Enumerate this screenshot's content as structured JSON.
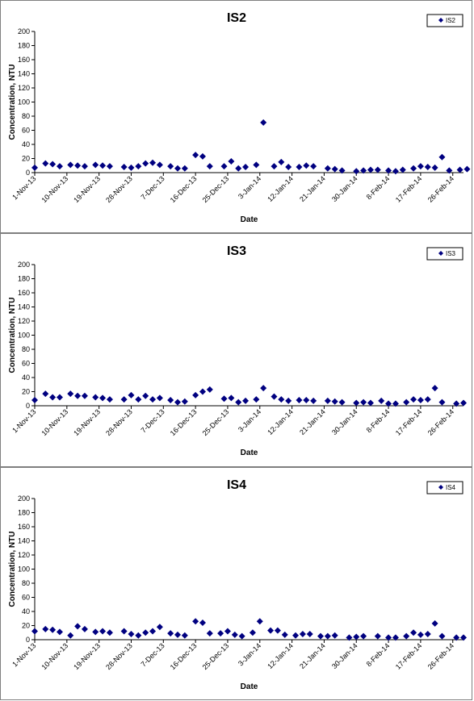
{
  "chart_data": [
    {
      "type": "scatter",
      "title": "IS2",
      "xlabel": "Date",
      "ylabel": "Concentration, NTU",
      "ylim": [
        0,
        200
      ],
      "yticks": [
        "0",
        "20",
        "40",
        "60",
        "80",
        "100",
        "120",
        "140",
        "160",
        "180",
        "200"
      ],
      "xlim": [
        "2013-11-01",
        "2014-03-01"
      ],
      "xticks": [
        "1-Nov-13",
        "10-Nov-13",
        "19-Nov-13",
        "28-Nov-13",
        "7-Dec-13",
        "16-Dec-13",
        "25-Dec-13",
        "3-Jan-14",
        "12-Jan-14",
        "21-Jan-14",
        "30-Jan-14",
        "8-Feb-14",
        "17-Feb-14",
        "26-Feb-14"
      ],
      "legend": "top-right",
      "color": "#000080",
      "series": [
        {
          "name": "IS2",
          "points": [
            [
              "2013-11-01",
              7
            ],
            [
              "2013-11-04",
              13
            ],
            [
              "2013-11-06",
              12
            ],
            [
              "2013-11-08",
              9
            ],
            [
              "2013-11-11",
              11
            ],
            [
              "2013-11-13",
              10
            ],
            [
              "2013-11-15",
              9
            ],
            [
              "2013-11-18",
              11
            ],
            [
              "2013-11-20",
              10
            ],
            [
              "2013-11-22",
              9
            ],
            [
              "2013-11-26",
              8
            ],
            [
              "2013-11-28",
              7
            ],
            [
              "2013-11-30",
              9
            ],
            [
              "2013-12-02",
              13
            ],
            [
              "2013-12-04",
              14
            ],
            [
              "2013-12-06",
              11
            ],
            [
              "2013-12-09",
              9
            ],
            [
              "2013-12-11",
              6
            ],
            [
              "2013-12-13",
              6
            ],
            [
              "2013-12-16",
              25
            ],
            [
              "2013-12-18",
              23
            ],
            [
              "2013-12-20",
              9
            ],
            [
              "2013-12-24",
              9
            ],
            [
              "2013-12-26",
              16
            ],
            [
              "2013-12-28",
              6
            ],
            [
              "2013-12-30",
              8
            ],
            [
              "2014-01-02",
              11
            ],
            [
              "2014-01-04",
              71
            ],
            [
              "2014-01-07",
              9
            ],
            [
              "2014-01-09",
              15
            ],
            [
              "2014-01-11",
              8
            ],
            [
              "2014-01-14",
              8
            ],
            [
              "2014-01-16",
              10
            ],
            [
              "2014-01-18",
              9
            ],
            [
              "2014-01-22",
              6
            ],
            [
              "2014-01-24",
              5
            ],
            [
              "2014-01-26",
              3
            ],
            [
              "2014-01-30",
              2
            ],
            [
              "2014-02-01",
              3
            ],
            [
              "2014-02-03",
              4
            ],
            [
              "2014-02-05",
              4
            ],
            [
              "2014-02-08",
              3
            ],
            [
              "2014-02-10",
              2
            ],
            [
              "2014-02-12",
              4
            ],
            [
              "2014-02-15",
              6
            ],
            [
              "2014-02-17",
              9
            ],
            [
              "2014-02-19",
              8
            ],
            [
              "2014-02-21",
              7
            ],
            [
              "2014-02-23",
              22
            ],
            [
              "2014-02-25",
              3
            ],
            [
              "2014-02-28",
              4
            ],
            [
              "2014-03-02",
              5
            ]
          ]
        }
      ]
    },
    {
      "type": "scatter",
      "title": "IS3",
      "xlabel": "Date",
      "ylabel": "Concentration, NTU",
      "ylim": [
        0,
        200
      ],
      "yticks": [
        "0",
        "20",
        "40",
        "60",
        "80",
        "100",
        "120",
        "140",
        "160",
        "180",
        "200"
      ],
      "xlim": [
        "2013-11-01",
        "2014-03-01"
      ],
      "xticks": [
        "1-Nov-13",
        "10-Nov-13",
        "19-Nov-13",
        "28-Nov-13",
        "7-Dec-13",
        "16-Dec-13",
        "25-Dec-13",
        "3-Jan-14",
        "12-Jan-14",
        "21-Jan-14",
        "30-Jan-14",
        "8-Feb-14",
        "17-Feb-14",
        "26-Feb-14"
      ],
      "legend": "top-right",
      "color": "#000080",
      "series": [
        {
          "name": "IS3",
          "points": [
            [
              "2013-11-01",
              8
            ],
            [
              "2013-11-04",
              17
            ],
            [
              "2013-11-06",
              12
            ],
            [
              "2013-11-08",
              12
            ],
            [
              "2013-11-11",
              17
            ],
            [
              "2013-11-13",
              14
            ],
            [
              "2013-11-15",
              14
            ],
            [
              "2013-11-18",
              12
            ],
            [
              "2013-11-20",
              11
            ],
            [
              "2013-11-22",
              9
            ],
            [
              "2013-11-26",
              9
            ],
            [
              "2013-11-28",
              15
            ],
            [
              "2013-11-30",
              9
            ],
            [
              "2013-12-02",
              14
            ],
            [
              "2013-12-04",
              9
            ],
            [
              "2013-12-06",
              11
            ],
            [
              "2013-12-09",
              8
            ],
            [
              "2013-12-11",
              5
            ],
            [
              "2013-12-13",
              6
            ],
            [
              "2013-12-16",
              15
            ],
            [
              "2013-12-18",
              20
            ],
            [
              "2013-12-20",
              23
            ],
            [
              "2013-12-24",
              10
            ],
            [
              "2013-12-26",
              11
            ],
            [
              "2013-12-28",
              5
            ],
            [
              "2013-12-30",
              7
            ],
            [
              "2014-01-02",
              9
            ],
            [
              "2014-01-04",
              25
            ],
            [
              "2014-01-07",
              13
            ],
            [
              "2014-01-09",
              9
            ],
            [
              "2014-01-11",
              7
            ],
            [
              "2014-01-14",
              8
            ],
            [
              "2014-01-16",
              8
            ],
            [
              "2014-01-18",
              7
            ],
            [
              "2014-01-22",
              7
            ],
            [
              "2014-01-24",
              6
            ],
            [
              "2014-01-26",
              5
            ],
            [
              "2014-01-30",
              4
            ],
            [
              "2014-02-01",
              5
            ],
            [
              "2014-02-03",
              4
            ],
            [
              "2014-02-06",
              7
            ],
            [
              "2014-02-08",
              3
            ],
            [
              "2014-02-10",
              3
            ],
            [
              "2014-02-13",
              5
            ],
            [
              "2014-02-15",
              9
            ],
            [
              "2014-02-17",
              8
            ],
            [
              "2014-02-19",
              9
            ],
            [
              "2014-02-21",
              25
            ],
            [
              "2014-02-23",
              5
            ],
            [
              "2014-02-27",
              3
            ],
            [
              "2014-03-01",
              4
            ]
          ]
        }
      ]
    },
    {
      "type": "scatter",
      "title": "IS4",
      "xlabel": "Date",
      "ylabel": "Concentration, NTU",
      "ylim": [
        0,
        200
      ],
      "yticks": [
        "0",
        "20",
        "40",
        "60",
        "80",
        "100",
        "120",
        "140",
        "160",
        "180",
        "200"
      ],
      "xlim": [
        "2013-11-01",
        "2014-03-01"
      ],
      "xticks": [
        "1-Nov-13",
        "10-Nov-13",
        "19-Nov-13",
        "28-Nov-13",
        "7-Dec-13",
        "16-Dec-13",
        "25-Dec-13",
        "3-Jan-14",
        "12-Jan-14",
        "21-Jan-14",
        "30-Jan-14",
        "8-Feb-14",
        "17-Feb-14",
        "26-Feb-14"
      ],
      "legend": "top-right",
      "color": "#000080",
      "series": [
        {
          "name": "IS4",
          "points": [
            [
              "2013-11-01",
              12
            ],
            [
              "2013-11-04",
              15
            ],
            [
              "2013-11-06",
              14
            ],
            [
              "2013-11-08",
              11
            ],
            [
              "2013-11-11",
              6
            ],
            [
              "2013-11-13",
              19
            ],
            [
              "2013-11-15",
              15
            ],
            [
              "2013-11-18",
              11
            ],
            [
              "2013-11-20",
              12
            ],
            [
              "2013-11-22",
              10
            ],
            [
              "2013-11-26",
              12
            ],
            [
              "2013-11-28",
              8
            ],
            [
              "2013-11-30",
              6
            ],
            [
              "2013-12-02",
              10
            ],
            [
              "2013-12-04",
              12
            ],
            [
              "2013-12-06",
              18
            ],
            [
              "2013-12-09",
              9
            ],
            [
              "2013-12-11",
              7
            ],
            [
              "2013-12-13",
              6
            ],
            [
              "2013-12-16",
              26
            ],
            [
              "2013-12-18",
              24
            ],
            [
              "2013-12-20",
              9
            ],
            [
              "2013-12-23",
              9
            ],
            [
              "2013-12-25",
              12
            ],
            [
              "2013-12-27",
              7
            ],
            [
              "2013-12-29",
              5
            ],
            [
              "2014-01-01",
              10
            ],
            [
              "2014-01-03",
              26
            ],
            [
              "2014-01-06",
              13
            ],
            [
              "2014-01-08",
              13
            ],
            [
              "2014-01-10",
              7
            ],
            [
              "2014-01-13",
              6
            ],
            [
              "2014-01-15",
              8
            ],
            [
              "2014-01-17",
              8
            ],
            [
              "2014-01-20",
              5
            ],
            [
              "2014-01-22",
              5
            ],
            [
              "2014-01-24",
              6
            ],
            [
              "2014-01-28",
              3
            ],
            [
              "2014-01-30",
              4
            ],
            [
              "2014-02-01",
              5
            ],
            [
              "2014-02-05",
              5
            ],
            [
              "2014-02-08",
              3
            ],
            [
              "2014-02-10",
              3
            ],
            [
              "2014-02-13",
              5
            ],
            [
              "2014-02-15",
              10
            ],
            [
              "2014-02-17",
              7
            ],
            [
              "2014-02-19",
              8
            ],
            [
              "2014-02-21",
              23
            ],
            [
              "2014-02-23",
              5
            ],
            [
              "2014-02-27",
              3
            ],
            [
              "2014-03-01",
              3
            ]
          ]
        }
      ]
    }
  ]
}
